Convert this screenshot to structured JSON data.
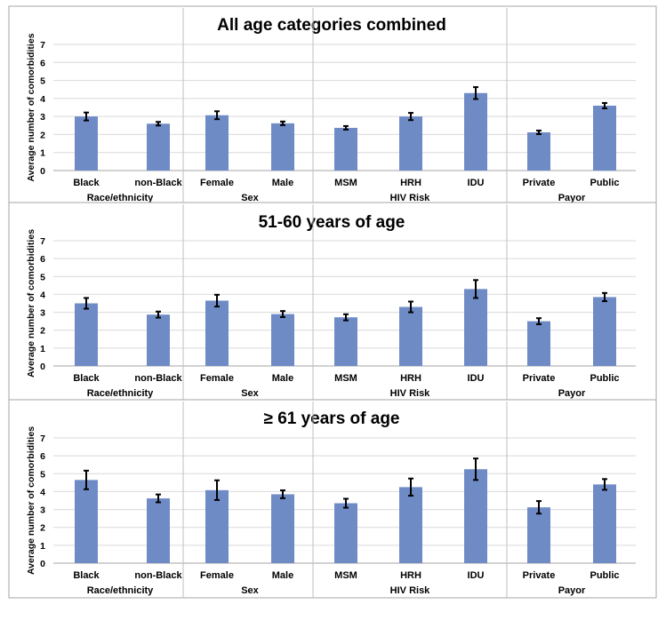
{
  "colors": {
    "bar": "#6f8bc6",
    "gridline": "#d9d9d9",
    "separator": "#bfbfbf",
    "panel_border": "#a6a6a6",
    "error_bar": "#000000"
  },
  "chart_data": [
    {
      "type": "bar",
      "title": "All age categories combined",
      "ylabel": "Average number of comorbidities",
      "ylim": [
        0,
        7
      ],
      "yticks": [
        "0",
        "1",
        "2",
        "3",
        "4",
        "5",
        "6",
        "7"
      ],
      "grid": true,
      "groups": [
        {
          "label": "Race/ethnicity",
          "categories": [
            "Black",
            "non-Black"
          ]
        },
        {
          "label": "Sex",
          "categories": [
            "Female",
            "Male"
          ]
        },
        {
          "label": "HIV Risk",
          "categories": [
            "MSM",
            "HRH",
            "IDU"
          ]
        },
        {
          "label": "Payor",
          "categories": [
            "Private",
            "Public"
          ]
        }
      ],
      "categories": [
        "Black",
        "non-Black",
        "Female",
        "Male",
        "MSM",
        "HRH",
        "IDU",
        "Private",
        "Public"
      ],
      "values": [
        3.0,
        2.6,
        3.07,
        2.62,
        2.37,
        3.0,
        4.3,
        2.12,
        3.6
      ],
      "errors": [
        0.22,
        0.1,
        0.22,
        0.1,
        0.1,
        0.2,
        0.33,
        0.1,
        0.15
      ]
    },
    {
      "type": "bar",
      "title": "51-60 years of age",
      "ylabel": "Average number of comorbidities",
      "ylim": [
        0,
        7
      ],
      "yticks": [
        "0",
        "1",
        "2",
        "3",
        "4",
        "5",
        "6",
        "7"
      ],
      "grid": true,
      "groups": [
        {
          "label": "Race/ethnicity",
          "categories": [
            "Black",
            "non-Black"
          ]
        },
        {
          "label": "Sex",
          "categories": [
            "Female",
            "Male"
          ]
        },
        {
          "label": "HIV Risk",
          "categories": [
            "MSM",
            "HRH",
            "IDU"
          ]
        },
        {
          "label": "Payor",
          "categories": [
            "Private",
            "Public"
          ]
        }
      ],
      "categories": [
        "Black",
        "non-Black",
        "Female",
        "Male",
        "MSM",
        "HRH",
        "IDU",
        "Private",
        "Public"
      ],
      "values": [
        3.5,
        2.87,
        3.65,
        2.9,
        2.72,
        3.3,
        4.3,
        2.5,
        3.85
      ],
      "errors": [
        0.3,
        0.17,
        0.33,
        0.17,
        0.17,
        0.3,
        0.5,
        0.17,
        0.23
      ]
    },
    {
      "type": "bar",
      "title": "≥ 61 years of age",
      "ylabel": "Average number of comorbidities",
      "ylim": [
        0,
        7
      ],
      "yticks": [
        "0",
        "1",
        "2",
        "3",
        "4",
        "5",
        "6",
        "7"
      ],
      "grid": true,
      "groups": [
        {
          "label": "Race/ethnicity",
          "categories": [
            "Black",
            "non-Black"
          ]
        },
        {
          "label": "Sex",
          "categories": [
            "Female",
            "Male"
          ]
        },
        {
          "label": "HIV Risk",
          "categories": [
            "MSM",
            "HRH",
            "IDU"
          ]
        },
        {
          "label": "Payor",
          "categories": [
            "Private",
            "Public"
          ]
        }
      ],
      "categories": [
        "Black",
        "non-Black",
        "Female",
        "Male",
        "MSM",
        "HRH",
        "IDU",
        "Private",
        "Public"
      ],
      "values": [
        4.65,
        3.62,
        4.08,
        3.85,
        3.35,
        4.25,
        5.25,
        3.12,
        4.4
      ],
      "errors": [
        0.52,
        0.22,
        0.55,
        0.22,
        0.25,
        0.48,
        0.6,
        0.35,
        0.3
      ]
    }
  ]
}
